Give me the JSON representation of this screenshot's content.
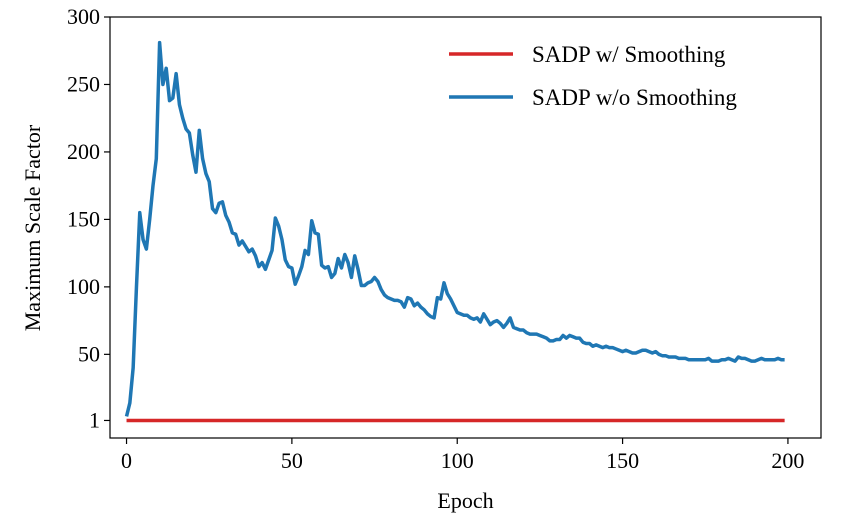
{
  "chart_data": {
    "type": "line",
    "title": "",
    "xlabel": "Epoch",
    "ylabel": "Maximum Scale Factor",
    "xlim": [
      -5,
      210
    ],
    "ylim": [
      -12,
      300
    ],
    "x_ticks": [
      0,
      50,
      100,
      150,
      200
    ],
    "y_ticks": [
      1,
      50,
      100,
      150,
      200,
      250,
      300
    ],
    "legend_position": "top-right",
    "grid": false,
    "series": [
      {
        "name": "SADP w/ Smoothing",
        "color": "#d62728",
        "x": [
          0,
          199
        ],
        "y": [
          1,
          1
        ]
      },
      {
        "name": "SADP w/o Smoothing",
        "color": "#1f77b4",
        "x": [
          0,
          1,
          2,
          3,
          4,
          5,
          6,
          7,
          8,
          9,
          10,
          11,
          12,
          13,
          14,
          15,
          16,
          17,
          18,
          19,
          20,
          21,
          22,
          23,
          24,
          25,
          26,
          27,
          28,
          29,
          30,
          31,
          32,
          33,
          34,
          35,
          36,
          37,
          38,
          39,
          40,
          41,
          42,
          43,
          44,
          45,
          46,
          47,
          48,
          49,
          50,
          51,
          52,
          53,
          54,
          55,
          56,
          57,
          58,
          59,
          60,
          61,
          62,
          63,
          64,
          65,
          66,
          67,
          68,
          69,
          70,
          71,
          72,
          73,
          74,
          75,
          76,
          77,
          78,
          79,
          80,
          81,
          82,
          83,
          84,
          85,
          86,
          87,
          88,
          89,
          90,
          91,
          92,
          93,
          94,
          95,
          96,
          97,
          98,
          99,
          100,
          101,
          102,
          103,
          104,
          105,
          106,
          107,
          108,
          109,
          110,
          111,
          112,
          113,
          114,
          115,
          116,
          117,
          118,
          119,
          120,
          121,
          122,
          123,
          124,
          125,
          126,
          127,
          128,
          129,
          130,
          131,
          132,
          133,
          134,
          135,
          136,
          137,
          138,
          139,
          140,
          141,
          142,
          143,
          144,
          145,
          146,
          147,
          148,
          149,
          150,
          151,
          152,
          153,
          154,
          155,
          156,
          157,
          158,
          159,
          160,
          161,
          162,
          163,
          164,
          165,
          166,
          167,
          168,
          169,
          170,
          171,
          172,
          173,
          174,
          175,
          176,
          177,
          178,
          179,
          180,
          181,
          182,
          183,
          184,
          185,
          186,
          187,
          188,
          189,
          190,
          191,
          192,
          193,
          194,
          195,
          196,
          197,
          198,
          199
        ],
        "y": [
          4,
          14,
          40,
          100,
          155,
          135,
          128,
          150,
          175,
          195,
          281,
          250,
          262,
          238,
          240,
          258,
          235,
          225,
          217,
          214,
          198,
          185,
          216,
          195,
          184,
          178,
          158,
          155,
          162,
          163,
          153,
          148,
          140,
          139,
          131,
          134,
          130,
          126,
          128,
          123,
          115,
          118,
          113,
          120,
          127,
          151,
          145,
          135,
          120,
          115,
          114,
          102,
          108,
          115,
          127,
          124,
          149,
          140,
          139,
          116,
          114,
          115,
          107,
          110,
          121,
          114,
          124,
          118,
          107,
          123,
          113,
          101,
          101,
          103,
          104,
          107,
          104,
          98,
          94,
          92,
          91,
          90,
          90,
          89,
          85,
          92,
          91,
          86,
          88,
          85,
          83,
          80,
          78,
          77,
          92,
          91,
          103,
          95,
          91,
          86,
          81,
          80,
          79,
          79,
          77,
          76,
          77,
          74,
          80,
          76,
          72,
          74,
          75,
          73,
          70,
          73,
          77,
          70,
          69,
          68,
          68,
          66,
          65,
          65,
          65,
          64,
          63,
          62,
          60,
          60,
          61,
          61,
          64,
          62,
          64,
          63,
          62,
          62,
          59,
          58,
          58,
          56,
          57,
          56,
          55,
          56,
          55,
          55,
          54,
          53,
          52,
          53,
          52,
          51,
          51,
          52,
          53,
          53,
          52,
          51,
          52,
          50,
          49,
          49,
          48,
          48,
          48,
          47,
          47,
          47,
          46,
          46,
          46,
          46,
          46,
          46,
          47,
          45,
          45,
          45,
          46,
          46,
          47,
          46,
          45,
          48,
          47,
          47,
          46,
          45,
          45,
          46,
          47,
          46,
          46,
          46,
          46,
          47,
          46,
          46
        ]
      }
    ]
  }
}
